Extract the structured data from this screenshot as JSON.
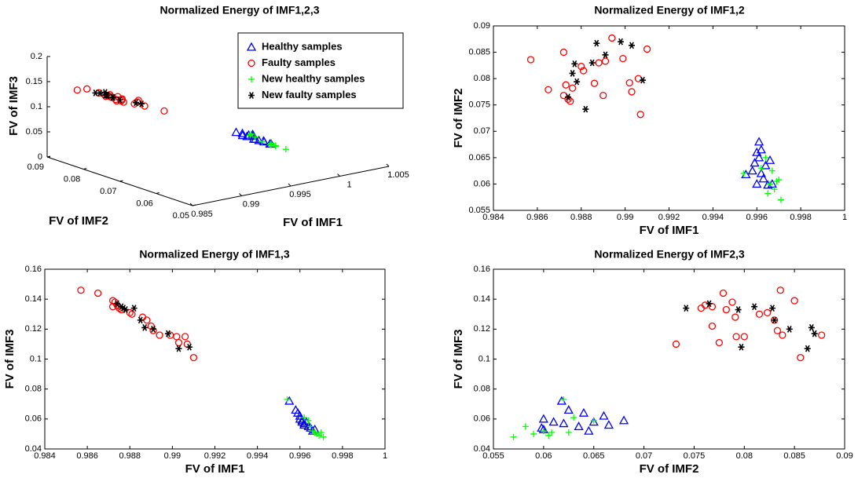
{
  "chart_data": [
    {
      "type": "scatter3d",
      "title": "Normalized Energy of IMF1,2,3",
      "xlabel": "FV of IMF1",
      "ylabel": "FV of IMF2",
      "zlabel": "FV of IMF3",
      "xlim": [
        0.985,
        1.005
      ],
      "xticks": [
        0.985,
        0.99,
        0.995,
        1,
        1.005
      ],
      "ylim": [
        0.05,
        0.09
      ],
      "yticks": [
        0.05,
        0.06,
        0.07,
        0.08,
        0.09
      ],
      "zlim": [
        0,
        0.2
      ],
      "zticks": [
        0,
        0.05,
        0.1,
        0.15,
        0.2
      ],
      "legend": "upper right",
      "series": [
        {
          "name": "Healthy samples",
          "color": "#0000ff",
          "marker": "^",
          "x": [
            0.9955,
            0.9958,
            0.9959,
            0.996,
            0.996,
            0.9961,
            0.9961,
            0.9962,
            0.9962,
            0.9963,
            0.9964,
            0.9965,
            0.9966,
            0.9967
          ],
          "y": [
            0.0618,
            0.0625,
            0.064,
            0.066,
            0.06,
            0.068,
            0.065,
            0.062,
            0.0665,
            0.061,
            0.0635,
            0.0598,
            0.0645,
            0.06
          ],
          "z": [
            0.072,
            0.066,
            0.064,
            0.062,
            0.06,
            0.059,
            0.058,
            0.057,
            0.056,
            0.058,
            0.055,
            0.054,
            0.052,
            0.053
          ]
        },
        {
          "name": "Faulty samples",
          "color": "#ff0000",
          "marker": "o",
          "x": [
            0.9857,
            0.9865,
            0.9872,
            0.9872,
            0.9873,
            0.9874,
            0.9875,
            0.9876,
            0.988,
            0.9881,
            0.9886,
            0.9888,
            0.989,
            0.9891,
            0.9894,
            0.9899,
            0.9902,
            0.9903,
            0.9906,
            0.9907,
            0.991
          ],
          "y": [
            0.0836,
            0.0779,
            0.085,
            0.0768,
            0.0788,
            0.0761,
            0.0757,
            0.0782,
            0.0823,
            0.0815,
            0.0791,
            0.083,
            0.0768,
            0.0833,
            0.0877,
            0.0838,
            0.0792,
            0.0775,
            0.08,
            0.0732,
            0.0856
          ],
          "z": [
            0.146,
            0.144,
            0.139,
            0.135,
            0.138,
            0.136,
            0.134,
            0.133,
            0.131,
            0.13,
            0.128,
            0.126,
            0.122,
            0.119,
            0.116,
            0.116,
            0.115,
            0.111,
            0.115,
            0.11,
            0.101
          ]
        },
        {
          "name": "New healthy samples",
          "color": "#00ff00",
          "marker": "+",
          "x": [
            0.9954,
            0.9962,
            0.9964,
            0.9965,
            0.9966,
            0.9967,
            0.9968,
            0.9969,
            0.997,
            0.9971
          ],
          "y": [
            0.062,
            0.063,
            0.065,
            0.0582,
            0.06,
            0.0625,
            0.059,
            0.0605,
            0.0608,
            0.057
          ],
          "z": [
            0.073,
            0.061,
            0.059,
            0.055,
            0.052,
            0.051,
            0.05,
            0.049,
            0.051,
            0.048
          ]
        },
        {
          "name": "New faulty samples",
          "color": "#000000",
          "marker": "*",
          "x": [
            0.9874,
            0.9876,
            0.9877,
            0.9878,
            0.9882,
            0.9885,
            0.9887,
            0.9891,
            0.9898,
            0.9903,
            0.9908
          ],
          "y": [
            0.0765,
            0.081,
            0.0828,
            0.0794,
            0.0742,
            0.083,
            0.0867,
            0.0845,
            0.087,
            0.0863,
            0.0797
          ],
          "z": [
            0.137,
            0.135,
            0.134,
            0.133,
            0.134,
            0.126,
            0.121,
            0.12,
            0.117,
            0.107,
            0.108
          ]
        }
      ]
    },
    {
      "type": "scatter",
      "title": "Normalized Energy of IMF1,2",
      "xlabel": "FV of IMF1",
      "ylabel": "FV of IMF2",
      "xlim": [
        0.984,
        1
      ],
      "xticks": [
        0.984,
        0.986,
        0.988,
        0.99,
        0.992,
        0.994,
        0.996,
        0.998,
        1
      ],
      "ylim": [
        0.055,
        0.09
      ],
      "yticks": [
        0.055,
        0.06,
        0.065,
        0.07,
        0.075,
        0.08,
        0.085,
        0.09
      ],
      "series": [
        {
          "color": "#0000ff",
          "marker": "^",
          "x": [
            0.9955,
            0.9958,
            0.9959,
            0.996,
            0.996,
            0.9961,
            0.9961,
            0.9962,
            0.9962,
            0.9963,
            0.9964,
            0.9965,
            0.9966,
            0.9967
          ],
          "y": [
            0.0618,
            0.0625,
            0.064,
            0.066,
            0.06,
            0.068,
            0.065,
            0.062,
            0.0665,
            0.061,
            0.0635,
            0.0598,
            0.0645,
            0.06
          ]
        },
        {
          "color": "#ff0000",
          "marker": "o",
          "x": [
            0.9857,
            0.9865,
            0.9872,
            0.9872,
            0.9873,
            0.9874,
            0.9875,
            0.9876,
            0.988,
            0.9881,
            0.9886,
            0.9888,
            0.989,
            0.9891,
            0.9894,
            0.9899,
            0.9902,
            0.9903,
            0.9906,
            0.9907,
            0.991
          ],
          "y": [
            0.0836,
            0.0779,
            0.085,
            0.0768,
            0.0788,
            0.0761,
            0.0757,
            0.0782,
            0.0823,
            0.0815,
            0.0791,
            0.083,
            0.0768,
            0.0833,
            0.0877,
            0.0838,
            0.0792,
            0.0775,
            0.08,
            0.0732,
            0.0856
          ]
        },
        {
          "color": "#00ff00",
          "marker": "+",
          "x": [
            0.9954,
            0.9962,
            0.9964,
            0.9965,
            0.9966,
            0.9967,
            0.9968,
            0.9969,
            0.997,
            0.9971
          ],
          "y": [
            0.062,
            0.063,
            0.065,
            0.0582,
            0.06,
            0.0625,
            0.059,
            0.0605,
            0.0608,
            0.057
          ]
        },
        {
          "color": "#000000",
          "marker": "*",
          "x": [
            0.9874,
            0.9876,
            0.9877,
            0.9878,
            0.9882,
            0.9885,
            0.9887,
            0.9891,
            0.9898,
            0.9903,
            0.9908
          ],
          "y": [
            0.0765,
            0.081,
            0.0828,
            0.0794,
            0.0742,
            0.083,
            0.0867,
            0.0845,
            0.087,
            0.0863,
            0.0797
          ]
        }
      ]
    },
    {
      "type": "scatter",
      "title": "Normalized Energy of IMF1,3",
      "xlabel": "FV of IMF1",
      "ylabel": "FV of IMF3",
      "xlim": [
        0.984,
        1
      ],
      "xticks": [
        0.984,
        0.986,
        0.988,
        0.99,
        0.992,
        0.994,
        0.996,
        0.998,
        1
      ],
      "ylim": [
        0.04,
        0.16
      ],
      "yticks": [
        0.04,
        0.06,
        0.08,
        0.1,
        0.12,
        0.14,
        0.16
      ],
      "series": [
        {
          "color": "#0000ff",
          "marker": "^",
          "x": [
            0.9955,
            0.9958,
            0.9959,
            0.996,
            0.996,
            0.9961,
            0.9961,
            0.9962,
            0.9962,
            0.9963,
            0.9964,
            0.9965,
            0.9966,
            0.9967
          ],
          "y": [
            0.072,
            0.066,
            0.064,
            0.062,
            0.06,
            0.059,
            0.058,
            0.057,
            0.056,
            0.058,
            0.055,
            0.054,
            0.052,
            0.053
          ]
        },
        {
          "color": "#ff0000",
          "marker": "o",
          "x": [
            0.9857,
            0.9865,
            0.9872,
            0.9872,
            0.9873,
            0.9874,
            0.9875,
            0.9876,
            0.988,
            0.9881,
            0.9886,
            0.9888,
            0.989,
            0.9891,
            0.9894,
            0.9899,
            0.9902,
            0.9903,
            0.9906,
            0.9907,
            0.991
          ],
          "y": [
            0.146,
            0.144,
            0.139,
            0.135,
            0.138,
            0.136,
            0.134,
            0.133,
            0.131,
            0.13,
            0.128,
            0.126,
            0.122,
            0.119,
            0.116,
            0.116,
            0.115,
            0.111,
            0.115,
            0.11,
            0.101
          ]
        },
        {
          "color": "#00ff00",
          "marker": "+",
          "x": [
            0.9954,
            0.9962,
            0.9964,
            0.9965,
            0.9966,
            0.9967,
            0.9968,
            0.9969,
            0.997,
            0.9971
          ],
          "y": [
            0.073,
            0.061,
            0.059,
            0.055,
            0.052,
            0.051,
            0.05,
            0.049,
            0.051,
            0.048
          ]
        },
        {
          "color": "#000000",
          "marker": "*",
          "x": [
            0.9874,
            0.9876,
            0.9877,
            0.9878,
            0.9882,
            0.9885,
            0.9887,
            0.9891,
            0.9898,
            0.9903,
            0.9908
          ],
          "y": [
            0.137,
            0.135,
            0.134,
            0.133,
            0.134,
            0.126,
            0.121,
            0.12,
            0.117,
            0.107,
            0.108
          ]
        }
      ]
    },
    {
      "type": "scatter",
      "title": "Normalized Energy of IMF2,3",
      "xlabel": "FV of IMF2",
      "ylabel": "FV of IMF3",
      "xlim": [
        0.055,
        0.09
      ],
      "xticks": [
        0.055,
        0.06,
        0.065,
        0.07,
        0.075,
        0.08,
        0.085,
        0.09
      ],
      "ylim": [
        0.04,
        0.16
      ],
      "yticks": [
        0.04,
        0.06,
        0.08,
        0.1,
        0.12,
        0.14,
        0.16
      ],
      "series": [
        {
          "color": "#0000ff",
          "marker": "^",
          "x": [
            0.0618,
            0.0625,
            0.064,
            0.066,
            0.06,
            0.068,
            0.065,
            0.062,
            0.0665,
            0.061,
            0.0635,
            0.0598,
            0.0645,
            0.06
          ],
          "y": [
            0.072,
            0.066,
            0.064,
            0.062,
            0.06,
            0.059,
            0.058,
            0.057,
            0.056,
            0.058,
            0.055,
            0.054,
            0.052,
            0.053
          ]
        },
        {
          "color": "#ff0000",
          "marker": "o",
          "x": [
            0.0836,
            0.0779,
            0.085,
            0.0768,
            0.0788,
            0.0761,
            0.0757,
            0.0782,
            0.0823,
            0.0815,
            0.0791,
            0.083,
            0.0768,
            0.0833,
            0.0877,
            0.0838,
            0.0792,
            0.0775,
            0.08,
            0.0732,
            0.0856
          ],
          "y": [
            0.146,
            0.144,
            0.139,
            0.135,
            0.138,
            0.136,
            0.134,
            0.133,
            0.131,
            0.13,
            0.128,
            0.126,
            0.122,
            0.119,
            0.116,
            0.116,
            0.115,
            0.111,
            0.115,
            0.11,
            0.101
          ]
        },
        {
          "color": "#00ff00",
          "marker": "+",
          "x": [
            0.062,
            0.063,
            0.065,
            0.0582,
            0.06,
            0.0625,
            0.059,
            0.0605,
            0.0608,
            0.057
          ],
          "y": [
            0.073,
            0.061,
            0.059,
            0.055,
            0.052,
            0.051,
            0.05,
            0.049,
            0.051,
            0.048
          ]
        },
        {
          "color": "#000000",
          "marker": "*",
          "x": [
            0.0765,
            0.081,
            0.0828,
            0.0794,
            0.0742,
            0.083,
            0.0867,
            0.0845,
            0.087,
            0.0863,
            0.0797
          ],
          "y": [
            0.137,
            0.135,
            0.134,
            0.133,
            0.134,
            0.126,
            0.121,
            0.12,
            0.117,
            0.107,
            0.108
          ]
        }
      ]
    }
  ]
}
